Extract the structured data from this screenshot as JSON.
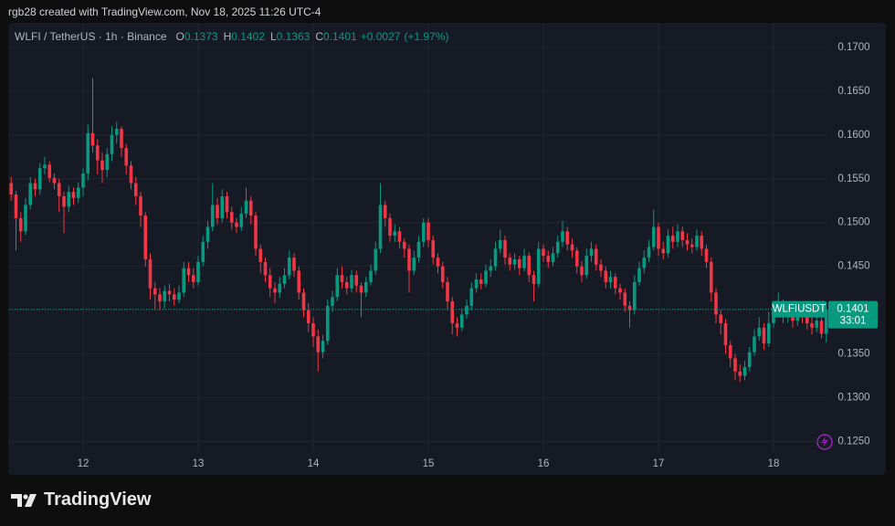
{
  "header": {
    "credit": "rgb28 created with TradingView.com, Nov 18, 2025 11:26 UTC-4"
  },
  "footer": {
    "brand": "TradingView"
  },
  "chart_data": {
    "type": "candlestick",
    "title": "WLFI / TetherUS · 1h · Binance",
    "legend": [
      {
        "label": "O",
        "value": 0.1373
      },
      {
        "label": "H",
        "value": 0.1402
      },
      {
        "label": "L",
        "value": 0.1363
      },
      {
        "label": "C",
        "value": 0.1401
      }
    ],
    "change": "+0.0027",
    "change_pct": "(+1.97%)",
    "symbol": "WLFIUSDT",
    "last_price": 0.1401,
    "countdown": "33:01",
    "up_color": "#089981",
    "down_color": "#f23645",
    "grid": true,
    "ylim": [
      0.1237,
      0.1728
    ],
    "yticks": [
      {
        "value": 0.125,
        "label": "0.1250"
      },
      {
        "value": 0.13,
        "label": "0.1300"
      },
      {
        "value": 0.135,
        "label": "0.1350"
      },
      {
        "value": 0.14,
        "label": "0.1400"
      },
      {
        "value": 0.145,
        "label": "0.1450"
      },
      {
        "value": 0.15,
        "label": "0.1500"
      },
      {
        "value": 0.155,
        "label": "0.1550"
      },
      {
        "value": 0.16,
        "label": "0.1600"
      },
      {
        "value": 0.165,
        "label": "0.1650"
      },
      {
        "value": 0.17,
        "label": "0.1700"
      }
    ],
    "categories": [
      null,
      null,
      null,
      null,
      null,
      null,
      null,
      null,
      null,
      null,
      null,
      null,
      null,
      null,
      null,
      "12",
      null,
      null,
      null,
      null,
      null,
      null,
      null,
      null,
      null,
      null,
      null,
      null,
      null,
      null,
      null,
      null,
      null,
      null,
      null,
      null,
      null,
      null,
      null,
      "13",
      null,
      null,
      null,
      null,
      null,
      null,
      null,
      null,
      null,
      null,
      null,
      null,
      null,
      null,
      null,
      null,
      null,
      null,
      null,
      null,
      null,
      null,
      null,
      "14",
      null,
      null,
      null,
      null,
      null,
      null,
      null,
      null,
      null,
      null,
      null,
      null,
      null,
      null,
      null,
      null,
      null,
      null,
      null,
      null,
      null,
      null,
      null,
      "15",
      null,
      null,
      null,
      null,
      null,
      null,
      null,
      null,
      null,
      null,
      null,
      null,
      null,
      null,
      null,
      null,
      null,
      null,
      null,
      null,
      null,
      null,
      null,
      "16",
      null,
      null,
      null,
      null,
      null,
      null,
      null,
      null,
      null,
      null,
      null,
      null,
      null,
      null,
      null,
      null,
      null,
      null,
      null,
      null,
      null,
      null,
      null,
      "17",
      null,
      null,
      null,
      null,
      null,
      null,
      null,
      null,
      null,
      null,
      null,
      null,
      null,
      null,
      null,
      null,
      null,
      null,
      null,
      null,
      null,
      null,
      null,
      "18",
      null,
      null,
      null,
      null,
      null,
      null,
      null,
      null,
      null,
      null,
      null
    ],
    "ohlc": [
      [
        0.1545,
        0.1552,
        0.1525,
        0.1532
      ],
      [
        0.1532,
        0.1536,
        0.1468,
        0.1505
      ],
      [
        0.1505,
        0.1512,
        0.1478,
        0.149
      ],
      [
        0.149,
        0.1528,
        0.1486,
        0.152
      ],
      [
        0.152,
        0.1552,
        0.1515,
        0.1545
      ],
      [
        0.1545,
        0.155,
        0.153,
        0.1538
      ],
      [
        0.1538,
        0.1568,
        0.1532,
        0.1562
      ],
      [
        0.1562,
        0.1575,
        0.1555,
        0.1566
      ],
      [
        0.1566,
        0.157,
        0.1546,
        0.1551
      ],
      [
        0.1551,
        0.1556,
        0.1538,
        0.1545
      ],
      [
        0.1545,
        0.155,
        0.1512,
        0.153
      ],
      [
        0.153,
        0.1535,
        0.1488,
        0.1518
      ],
      [
        0.1518,
        0.1542,
        0.1512,
        0.1535
      ],
      [
        0.1535,
        0.154,
        0.152,
        0.1528
      ],
      [
        0.1528,
        0.1546,
        0.1522,
        0.154
      ],
      [
        0.154,
        0.1562,
        0.153,
        0.1556
      ],
      [
        0.1556,
        0.1612,
        0.1548,
        0.1602
      ],
      [
        0.1602,
        0.1665,
        0.158,
        0.1588
      ],
      [
        0.1588,
        0.1595,
        0.1555,
        0.1571
      ],
      [
        0.1571,
        0.158,
        0.1545,
        0.156
      ],
      [
        0.156,
        0.1585,
        0.1552,
        0.1578
      ],
      [
        0.1578,
        0.161,
        0.157,
        0.16
      ],
      [
        0.16,
        0.1615,
        0.159,
        0.1607
      ],
      [
        0.1607,
        0.161,
        0.1575,
        0.1585
      ],
      [
        0.1585,
        0.159,
        0.1555,
        0.1565
      ],
      [
        0.1565,
        0.157,
        0.1538,
        0.1545
      ],
      [
        0.1545,
        0.1552,
        0.152,
        0.153
      ],
      [
        0.153,
        0.1535,
        0.1495,
        0.1508
      ],
      [
        0.1508,
        0.1512,
        0.145,
        0.1458
      ],
      [
        0.1458,
        0.1465,
        0.1412,
        0.1425
      ],
      [
        0.1425,
        0.1432,
        0.14,
        0.1418
      ],
      [
        0.1418,
        0.1425,
        0.14,
        0.141
      ],
      [
        0.141,
        0.1428,
        0.1402,
        0.1422
      ],
      [
        0.1422,
        0.143,
        0.141,
        0.1418
      ],
      [
        0.1418,
        0.1425,
        0.1405,
        0.1412
      ],
      [
        0.1412,
        0.1428,
        0.1408,
        0.142
      ],
      [
        0.142,
        0.1455,
        0.1415,
        0.1448
      ],
      [
        0.1448,
        0.1455,
        0.1432,
        0.144
      ],
      [
        0.144,
        0.1448,
        0.1425,
        0.1432
      ],
      [
        0.1432,
        0.1462,
        0.1428,
        0.1455
      ],
      [
        0.1455,
        0.1485,
        0.145,
        0.1478
      ],
      [
        0.1478,
        0.1502,
        0.147,
        0.1495
      ],
      [
        0.1495,
        0.1545,
        0.149,
        0.152
      ],
      [
        0.152,
        0.1528,
        0.1498,
        0.1505
      ],
      [
        0.1505,
        0.1538,
        0.15,
        0.153
      ],
      [
        0.153,
        0.1535,
        0.1505,
        0.1512
      ],
      [
        0.1512,
        0.1518,
        0.1492,
        0.15
      ],
      [
        0.15,
        0.1505,
        0.1488,
        0.1495
      ],
      [
        0.1495,
        0.1518,
        0.149,
        0.151
      ],
      [
        0.151,
        0.154,
        0.1505,
        0.1525
      ],
      [
        0.1525,
        0.153,
        0.1498,
        0.1508
      ],
      [
        0.1508,
        0.1512,
        0.1462,
        0.147
      ],
      [
        0.147,
        0.1475,
        0.1442,
        0.1455
      ],
      [
        0.1455,
        0.146,
        0.1432,
        0.144
      ],
      [
        0.144,
        0.1448,
        0.1415,
        0.1425
      ],
      [
        0.1425,
        0.1432,
        0.1408,
        0.142
      ],
      [
        0.142,
        0.1438,
        0.1414,
        0.143
      ],
      [
        0.143,
        0.1448,
        0.1425,
        0.144
      ],
      [
        0.144,
        0.1468,
        0.1435,
        0.146
      ],
      [
        0.146,
        0.1465,
        0.1438,
        0.1445
      ],
      [
        0.1445,
        0.145,
        0.1412,
        0.142
      ],
      [
        0.142,
        0.1425,
        0.1392,
        0.14
      ],
      [
        0.14,
        0.1408,
        0.1375,
        0.1385
      ],
      [
        0.1385,
        0.1392,
        0.1358,
        0.137
      ],
      [
        0.137,
        0.1378,
        0.133,
        0.1352
      ],
      [
        0.1352,
        0.1372,
        0.1345,
        0.1365
      ],
      [
        0.1365,
        0.1412,
        0.136,
        0.1405
      ],
      [
        0.1405,
        0.1422,
        0.1398,
        0.1415
      ],
      [
        0.1415,
        0.1448,
        0.141,
        0.144
      ],
      [
        0.144,
        0.145,
        0.1425,
        0.1432
      ],
      [
        0.1432,
        0.1438,
        0.1418,
        0.1425
      ],
      [
        0.1425,
        0.1446,
        0.142,
        0.144
      ],
      [
        0.144,
        0.1445,
        0.142,
        0.1428
      ],
      [
        0.1428,
        0.1432,
        0.1392,
        0.142
      ],
      [
        0.142,
        0.1438,
        0.1415,
        0.1432
      ],
      [
        0.1432,
        0.1452,
        0.1428,
        0.1445
      ],
      [
        0.1445,
        0.1478,
        0.144,
        0.147
      ],
      [
        0.147,
        0.1545,
        0.1465,
        0.152
      ],
      [
        0.152,
        0.1525,
        0.1495,
        0.1505
      ],
      [
        0.1505,
        0.151,
        0.1478,
        0.1485
      ],
      [
        0.1485,
        0.1498,
        0.1478,
        0.149
      ],
      [
        0.149,
        0.1495,
        0.147,
        0.1478
      ],
      [
        0.1478,
        0.1482,
        0.146,
        0.147
      ],
      [
        0.147,
        0.1475,
        0.142,
        0.1445
      ],
      [
        0.1445,
        0.1468,
        0.144,
        0.146
      ],
      [
        0.146,
        0.1485,
        0.1455,
        0.1478
      ],
      [
        0.1478,
        0.1505,
        0.1472,
        0.15
      ],
      [
        0.15,
        0.1505,
        0.1472,
        0.148
      ],
      [
        0.148,
        0.1485,
        0.1452,
        0.146
      ],
      [
        0.146,
        0.1465,
        0.1442,
        0.145
      ],
      [
        0.145,
        0.1455,
        0.1425,
        0.1432
      ],
      [
        0.1432,
        0.1438,
        0.14,
        0.141
      ],
      [
        0.141,
        0.1415,
        0.1372,
        0.1385
      ],
      [
        0.1385,
        0.1392,
        0.137,
        0.138
      ],
      [
        0.138,
        0.1402,
        0.1376,
        0.1395
      ],
      [
        0.1395,
        0.1412,
        0.139,
        0.1405
      ],
      [
        0.1405,
        0.1432,
        0.14,
        0.1425
      ],
      [
        0.1425,
        0.1442,
        0.142,
        0.1435
      ],
      [
        0.1435,
        0.1442,
        0.1424,
        0.143
      ],
      [
        0.143,
        0.1452,
        0.1426,
        0.1445
      ],
      [
        0.1445,
        0.1458,
        0.1438,
        0.145
      ],
      [
        0.145,
        0.1478,
        0.1445,
        0.147
      ],
      [
        0.147,
        0.1492,
        0.1465,
        0.148
      ],
      [
        0.148,
        0.1485,
        0.1452,
        0.146
      ],
      [
        0.146,
        0.1465,
        0.1445,
        0.1452
      ],
      [
        0.1452,
        0.1465,
        0.1446,
        0.1458
      ],
      [
        0.1458,
        0.1462,
        0.144,
        0.1448
      ],
      [
        0.1448,
        0.147,
        0.1444,
        0.1462
      ],
      [
        0.1462,
        0.1466,
        0.1432,
        0.144
      ],
      [
        0.144,
        0.1445,
        0.141,
        0.143
      ],
      [
        0.143,
        0.1478,
        0.1426,
        0.147
      ],
      [
        0.147,
        0.1475,
        0.1455,
        0.1462
      ],
      [
        0.1462,
        0.1468,
        0.1448,
        0.1455
      ],
      [
        0.1455,
        0.1472,
        0.145,
        0.1465
      ],
      [
        0.1465,
        0.1485,
        0.146,
        0.1478
      ],
      [
        0.1478,
        0.1502,
        0.1472,
        0.149
      ],
      [
        0.149,
        0.1495,
        0.1468,
        0.1475
      ],
      [
        0.1475,
        0.1482,
        0.146,
        0.1468
      ],
      [
        0.1468,
        0.1472,
        0.1442,
        0.145
      ],
      [
        0.145,
        0.1456,
        0.1432,
        0.144
      ],
      [
        0.144,
        0.147,
        0.1436,
        0.1462
      ],
      [
        0.1462,
        0.1478,
        0.1455,
        0.147
      ],
      [
        0.147,
        0.1475,
        0.1445,
        0.1452
      ],
      [
        0.1452,
        0.1458,
        0.1438,
        0.1445
      ],
      [
        0.1445,
        0.145,
        0.1425,
        0.1432
      ],
      [
        0.1432,
        0.1445,
        0.1425,
        0.1438
      ],
      [
        0.1438,
        0.1442,
        0.1418,
        0.1425
      ],
      [
        0.1425,
        0.143,
        0.1412,
        0.142
      ],
      [
        0.142,
        0.1425,
        0.1398,
        0.1405
      ],
      [
        0.1405,
        0.141,
        0.138,
        0.14
      ],
      [
        0.14,
        0.144,
        0.1395,
        0.1432
      ],
      [
        0.1432,
        0.1455,
        0.1428,
        0.1448
      ],
      [
        0.1448,
        0.1468,
        0.1442,
        0.146
      ],
      [
        0.146,
        0.148,
        0.1455,
        0.1472
      ],
      [
        0.1472,
        0.1515,
        0.1468,
        0.1495
      ],
      [
        0.1495,
        0.15,
        0.1462,
        0.147
      ],
      [
        0.147,
        0.1478,
        0.1458,
        0.1465
      ],
      [
        0.1465,
        0.1492,
        0.146,
        0.1485
      ],
      [
        0.1485,
        0.1495,
        0.147,
        0.1478
      ],
      [
        0.1478,
        0.1498,
        0.1472,
        0.149
      ],
      [
        0.149,
        0.1495,
        0.1472,
        0.148
      ],
      [
        0.148,
        0.1488,
        0.1468,
        0.1475
      ],
      [
        0.1475,
        0.1482,
        0.1465,
        0.1472
      ],
      [
        0.1472,
        0.1492,
        0.1468,
        0.1485
      ],
      [
        0.1485,
        0.149,
        0.1462,
        0.147
      ],
      [
        0.147,
        0.1475,
        0.1448,
        0.1455
      ],
      [
        0.1455,
        0.146,
        0.141,
        0.142
      ],
      [
        0.142,
        0.1425,
        0.1385,
        0.1395
      ],
      [
        0.1395,
        0.14,
        0.1372,
        0.1385
      ],
      [
        0.1385,
        0.139,
        0.135,
        0.136
      ],
      [
        0.136,
        0.1365,
        0.1335,
        0.1345
      ],
      [
        0.1345,
        0.135,
        0.132,
        0.133
      ],
      [
        0.133,
        0.1338,
        0.1318,
        0.1325
      ],
      [
        0.1325,
        0.1342,
        0.132,
        0.1335
      ],
      [
        0.1335,
        0.1358,
        0.133,
        0.1352
      ],
      [
        0.1352,
        0.1378,
        0.1348,
        0.137
      ],
      [
        0.137,
        0.1392,
        0.1365,
        0.138
      ],
      [
        0.138,
        0.1385,
        0.1355,
        0.1362
      ],
      [
        0.1362,
        0.1398,
        0.1358,
        0.1385
      ],
      [
        0.1385,
        0.1405,
        0.138,
        0.1398
      ],
      [
        0.1398,
        0.142,
        0.1392,
        0.1408
      ],
      [
        0.1408,
        0.1412,
        0.1385,
        0.1392
      ],
      [
        0.1392,
        0.1402,
        0.1386,
        0.1395
      ],
      [
        0.1395,
        0.14,
        0.138,
        0.1388
      ],
      [
        0.1388,
        0.1408,
        0.1382,
        0.14
      ],
      [
        0.14,
        0.1405,
        0.1385,
        0.1392
      ],
      [
        0.1392,
        0.1398,
        0.1378,
        0.1385
      ],
      [
        0.1385,
        0.1392,
        0.1372,
        0.138
      ],
      [
        0.138,
        0.1395,
        0.1375,
        0.1388
      ],
      [
        0.1388,
        0.1392,
        0.1368,
        0.1373
      ],
      [
        0.1373,
        0.1402,
        0.1363,
        0.1401
      ]
    ]
  }
}
